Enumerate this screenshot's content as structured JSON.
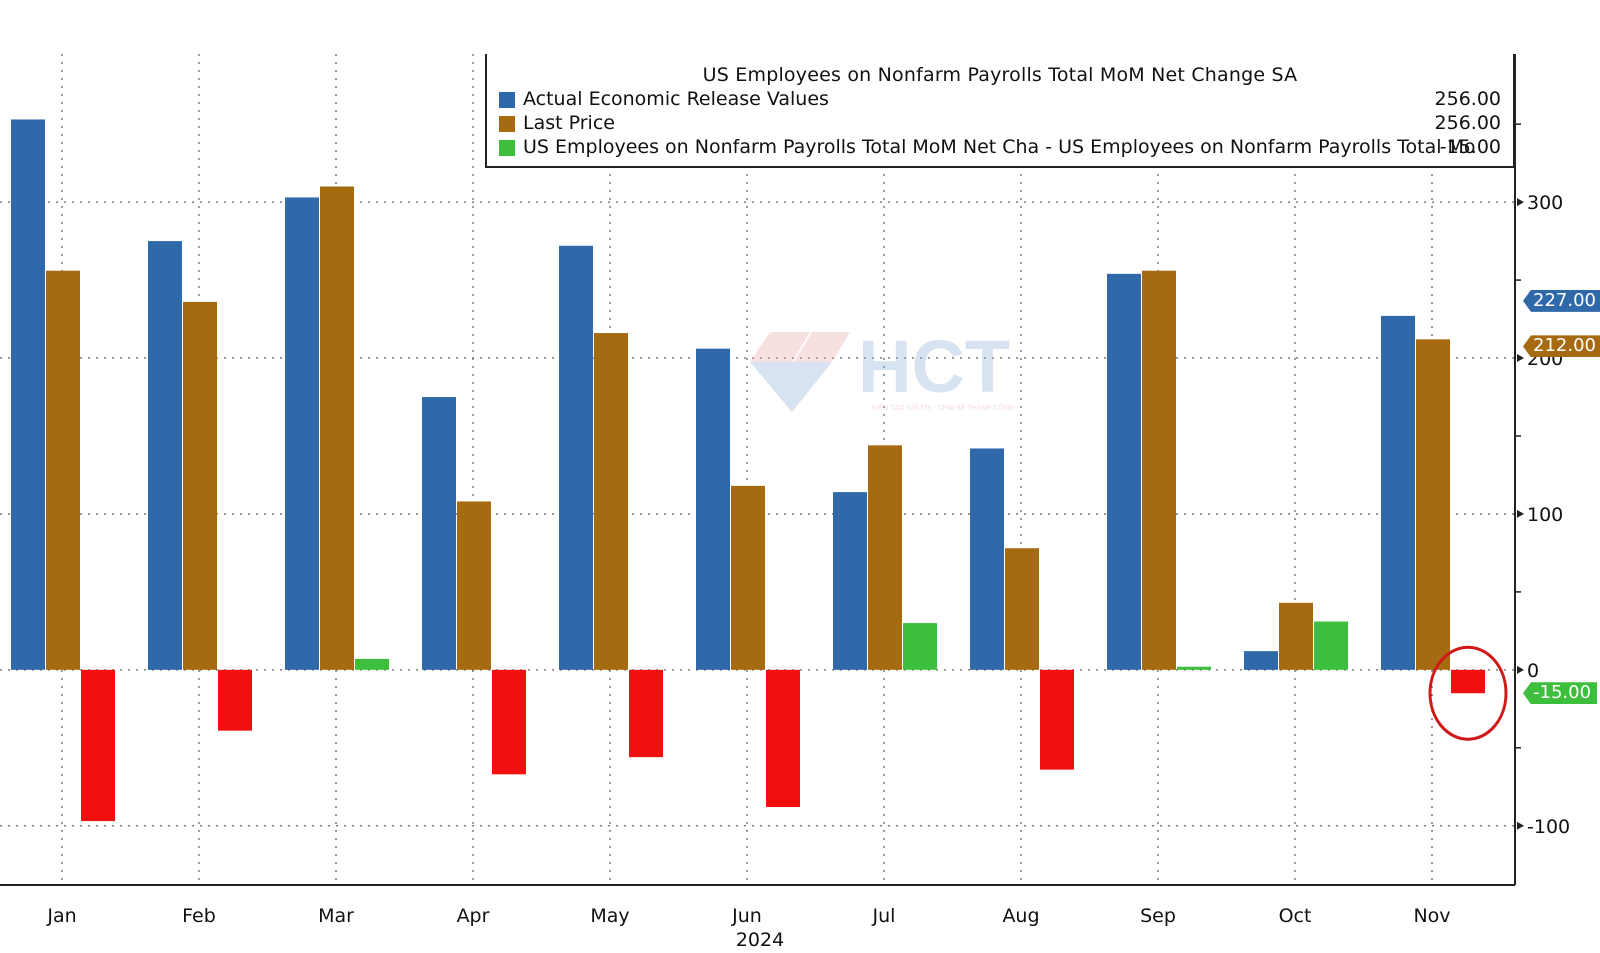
{
  "chart_data": {
    "type": "bar",
    "title": "US Employees on Nonfarm Payrolls Total MoM Net Change SA",
    "categories": [
      "Jan",
      "Feb",
      "Mar",
      "Apr",
      "May",
      "Jun",
      "Jul",
      "Aug",
      "Sep",
      "Oct",
      "Nov"
    ],
    "xlabel": "2024",
    "ylim": [
      -138,
      395
    ],
    "yticks": [
      -100,
      0,
      100,
      200,
      300
    ],
    "ytick_labels": [
      "-100",
      "0",
      "100",
      "200",
      "300"
    ],
    "grid": true,
    "legend_placement": "top",
    "series": [
      {
        "name": "Actual Economic Release Values",
        "legend_value": "256.00",
        "color": "#2f69aa",
        "values": [
          353,
          275,
          303,
          175,
          272,
          206,
          114,
          142,
          254,
          12,
          227
        ]
      },
      {
        "name": "Last Price",
        "legend_value": "256.00",
        "color": "#a66a10",
        "values": [
          256,
          236,
          310,
          108,
          216,
          118,
          144,
          78,
          256,
          43,
          212
        ]
      },
      {
        "name": "US Employees on Nonfarm Payrolls Total MoM Net Cha - US Employees on Nonfarm Payrolls Total Mo",
        "legend_value": "-15.00",
        "color_positive": "#3dbf3d",
        "color_negative": "#f20f0f",
        "values": [
          -97,
          -39,
          7,
          -67,
          -56,
          -88,
          30,
          -64,
          2,
          31,
          -15
        ]
      }
    ],
    "last_value_tags": [
      {
        "text": "227.00",
        "value": 227,
        "color": "#2f69aa"
      },
      {
        "text": "212.00",
        "value": 212,
        "color": "#a66a10"
      },
      {
        "text": "-15.00",
        "value": -15,
        "color": "#3dbf3d"
      }
    ],
    "highlight": {
      "category": "Nov",
      "series_index": 2,
      "color": "#d01818"
    }
  },
  "watermark": {
    "text": "HCT",
    "tagline": "KIẾN TẠO GIÁ TRỊ - CHIA SẺ THÀNH CÔNG"
  }
}
